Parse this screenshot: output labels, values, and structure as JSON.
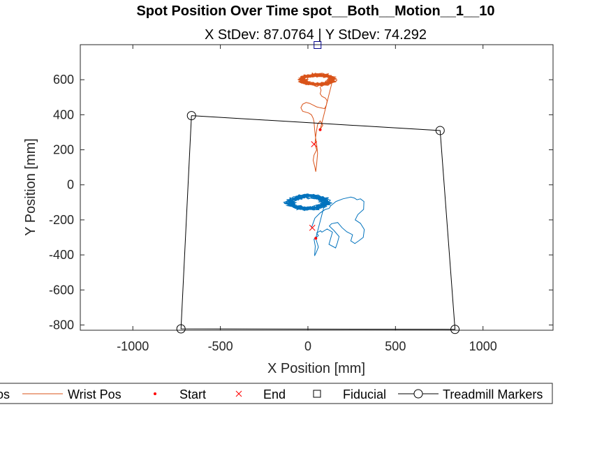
{
  "chart_data": {
    "type": "line",
    "title": "Spot Position Over Time spot__Both__Motion__1__10",
    "subtitle": "X StDev: 87.0764  |  Y StDev: 74.292",
    "xlabel": "X Position [mm]",
    "ylabel": "Y Position [mm]",
    "xlim": [
      -1300,
      1400
    ],
    "ylim": [
      -830,
      800
    ],
    "xticks": [
      -1000,
      -500,
      0,
      500,
      1000
    ],
    "xtick_labels": [
      "-1000",
      "-500",
      "0",
      "500",
      "1000"
    ],
    "yticks": [
      -800,
      -600,
      -400,
      -200,
      0,
      200,
      400,
      600
    ],
    "ytick_labels": [
      "-800",
      "-600",
      "-400",
      "-200",
      "0",
      "200",
      "400",
      "600"
    ],
    "grid": false,
    "legend_position": "bottom",
    "legend": [
      {
        "name": "Ankle Pos",
        "display": "os",
        "marker": "line",
        "color": "#0072BD"
      },
      {
        "name": "Wrist Pos",
        "display": "Wrist Pos",
        "marker": "line",
        "color": "#D95319"
      },
      {
        "name": "Start",
        "display": "Start",
        "marker": "dot",
        "color": "#FF0000"
      },
      {
        "name": "End",
        "display": "End",
        "marker": "x",
        "color": "#FF0000"
      },
      {
        "name": "Fiducial",
        "display": "Fiducial",
        "marker": "square",
        "color": "#000000"
      },
      {
        "name": "Treadmill Markers",
        "display": "Treadmill Markers",
        "marker": "circle-line",
        "color": "#000000"
      }
    ],
    "treadmill": {
      "color": "#000000",
      "x": [
        -665,
        755,
        840,
        -725,
        -665
      ],
      "y": [
        395,
        310,
        -825,
        -822,
        395
      ]
    },
    "fiducial": {
      "x": 55,
      "y": 798,
      "color": "#00008B"
    },
    "ankle": {
      "color": "#0072BD",
      "start": {
        "x": 45,
        "y": -305
      },
      "end": {
        "x": 25,
        "y": -245
      },
      "trail_x": [
        45,
        52,
        60,
        48,
        38,
        42,
        35,
        60,
        50,
        72,
        80,
        110,
        140,
        120,
        158,
        168,
        178,
        148,
        122,
        135,
        170,
        195,
        222,
        255,
        245,
        268,
        290,
        316,
        322,
        300,
        270,
        285,
        318,
        320,
        300,
        280,
        265,
        245,
        200,
        160,
        130,
        120,
        100,
        70,
        40,
        20
      ],
      "trail_y": [
        -305,
        -330,
        -355,
        -385,
        -405,
        -350,
        -310,
        -290,
        -275,
        -262,
        -270,
        -252,
        -270,
        -340,
        -360,
        -332,
        -295,
        -260,
        -235,
        -222,
        -215,
        -245,
        -268,
        -285,
        -320,
        -335,
        -320,
        -300,
        -255,
        -220,
        -200,
        -170,
        -140,
        -95,
        -80,
        -85,
        -75,
        -70,
        -80,
        -95,
        -120,
        -135,
        -140,
        -160,
        -190,
        -245
      ],
      "loops": {
        "cx": 0,
        "cy": -100,
        "rx": 130,
        "ry": 45,
        "count": 18
      }
    },
    "wrist": {
      "color": "#D95319",
      "start": {
        "x": 70,
        "y": 315
      },
      "end": {
        "x": 35,
        "y": 232
      },
      "trail_x": [
        70,
        75,
        85,
        70,
        55,
        45,
        40,
        50,
        35,
        30,
        40,
        45,
        50,
        55,
        50,
        42,
        38,
        35,
        30,
        20,
        5,
        -30,
        -40,
        -30,
        -10,
        10,
        30,
        50,
        70,
        95,
        105,
        110,
        100,
        80,
        70,
        75,
        70,
        72
      ],
      "trail_y": [
        315,
        325,
        340,
        365,
        345,
        280,
        232,
        200,
        170,
        140,
        100,
        75,
        120,
        180,
        230,
        280,
        320,
        360,
        380,
        400,
        410,
        420,
        440,
        460,
        470,
        465,
        455,
        445,
        440,
        435,
        455,
        480,
        495,
        505,
        520,
        540,
        555,
        560
      ],
      "loops": {
        "cx": 55,
        "cy": 600,
        "rx": 110,
        "ry": 35,
        "count": 18
      }
    }
  }
}
